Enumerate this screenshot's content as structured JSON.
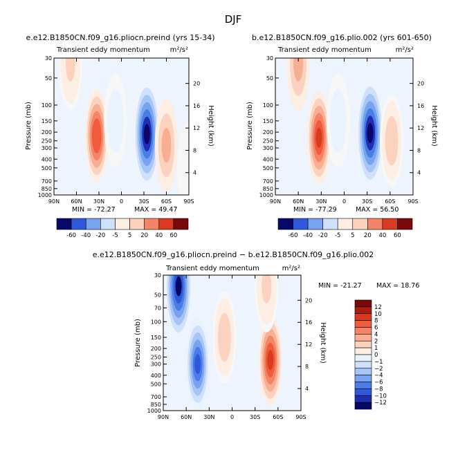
{
  "page_title": "DJF",
  "colors": {
    "diverging_scale": [
      "#08086b",
      "#1f2fb4",
      "#2f59d9",
      "#4a7ee6",
      "#78a3ef",
      "#a6c5f5",
      "#cfe0fb",
      "#eaf2fe",
      "#fdeee4",
      "#fbd2bd",
      "#f7ae92",
      "#f48466",
      "#ef5b3d",
      "#d93a22",
      "#a81e12",
      "#7a0a0a"
    ],
    "zero_band": "#f7f7f7"
  },
  "chart_data": [
    {
      "type": "heatmap",
      "title": "e.e12.B1850CN.f09_g16.pliocn.preind (yrs 15-34)",
      "subtitle": "Transient eddy momentum",
      "units": "m²/s²",
      "xlabel": "",
      "ylabel": "Pressure (mb)",
      "y2label": "Height (km)",
      "x_ticks": [
        "90N",
        "60N",
        "30N",
        "0",
        "30S",
        "60S",
        "90S"
      ],
      "y_ticks": [
        "30",
        "50",
        "70",
        "100",
        "150",
        "200",
        "250",
        "300",
        "400",
        "500",
        "700",
        "850",
        "1000"
      ],
      "y_tick_labels": [
        "30",
        "50",
        "100",
        "150",
        "200",
        "250",
        "300",
        "400",
        "500",
        "700",
        "850",
        "1000"
      ],
      "y2_ticks": [
        "4",
        "8",
        "12",
        "16",
        "20"
      ],
      "ylim": [
        1000,
        30
      ],
      "min_label": "MIN = -72.27",
      "max_label": "MAX = 49.47",
      "min": -72.27,
      "max": 49.47,
      "features": [
        {
          "lat": 68,
          "p": 35,
          "value": 14
        },
        {
          "lat": 33,
          "p": 220,
          "value": 48
        },
        {
          "lat": 8,
          "p": 150,
          "value": -8
        },
        {
          "lat": -34,
          "p": 210,
          "value": -70
        },
        {
          "lat": -60,
          "p": 280,
          "value": 25
        },
        {
          "lat": -90,
          "p": 500,
          "value": 2
        }
      ],
      "colorbar_labels": [
        "-60",
        "-40",
        "-20",
        "-5",
        "5",
        "20",
        "40",
        "60"
      ]
    },
    {
      "type": "heatmap",
      "title": "b.e12.B1850CN.f09_g16.plio.002 (yrs 601-650)",
      "subtitle": "Transient eddy momentum",
      "units": "m²/s²",
      "xlabel": "",
      "ylabel": "Pressure (mb)",
      "y2label": "Height (km)",
      "x_ticks": [
        "90N",
        "60N",
        "30N",
        "0",
        "30S",
        "60S",
        "90S"
      ],
      "y_tick_labels": [
        "30",
        "50",
        "100",
        "150",
        "200",
        "250",
        "300",
        "400",
        "500",
        "700",
        "850",
        "1000"
      ],
      "y2_ticks": [
        "4",
        "8",
        "12",
        "16",
        "20"
      ],
      "ylim": [
        1000,
        30
      ],
      "min_label": "MIN = -77.29",
      "max_label": "MAX =  56.50",
      "min": -77.29,
      "max": 56.5,
      "features": [
        {
          "lat": 60,
          "p": 35,
          "value": 30
        },
        {
          "lat": 33,
          "p": 230,
          "value": 55
        },
        {
          "lat": 8,
          "p": 150,
          "value": -8
        },
        {
          "lat": -34,
          "p": 205,
          "value": -75
        },
        {
          "lat": -62,
          "p": 250,
          "value": 20
        }
      ],
      "colorbar_labels": [
        "-60",
        "-40",
        "-20",
        "-5",
        "5",
        "20",
        "40",
        "60"
      ]
    },
    {
      "type": "heatmap",
      "title": "e.e12.B1850CN.f09_g16.pliocn.preind − b.e12.B1850CN.f09_g16.plio.002",
      "subtitle": "Transient eddy momentum",
      "units": "m²/s²",
      "xlabel": "",
      "ylabel": "Pressure (mb)",
      "y2label": "Height (km)",
      "x_ticks": [
        "90N",
        "60N",
        "30N",
        "0",
        "30S",
        "60S",
        "90S"
      ],
      "y_tick_labels": [
        "30",
        "50",
        "70",
        "100",
        "150",
        "200",
        "250",
        "300",
        "400",
        "500",
        "700",
        "850",
        "1000"
      ],
      "y2_ticks": [
        "4",
        "8",
        "12",
        "16",
        "20"
      ],
      "ylim": [
        1000,
        30
      ],
      "min_label": "MIN = -21.27",
      "max_label": "MAX =  18.76",
      "min": -21.27,
      "max": 18.76,
      "features": [
        {
          "lat": 70,
          "p": 40,
          "value": -20
        },
        {
          "lat": 45,
          "p": 300,
          "value": -16
        },
        {
          "lat": 10,
          "p": 150,
          "value": 5
        },
        {
          "lat": -50,
          "p": 270,
          "value": 17
        },
        {
          "lat": -45,
          "p": 40,
          "value": 4
        }
      ],
      "colorbar_labels": [
        "12",
        "10",
        "8",
        "6",
        "4",
        "2",
        "1",
        "0",
        "−1",
        "−2",
        "−4",
        "−6",
        "−8",
        "−10",
        "−12"
      ]
    }
  ]
}
